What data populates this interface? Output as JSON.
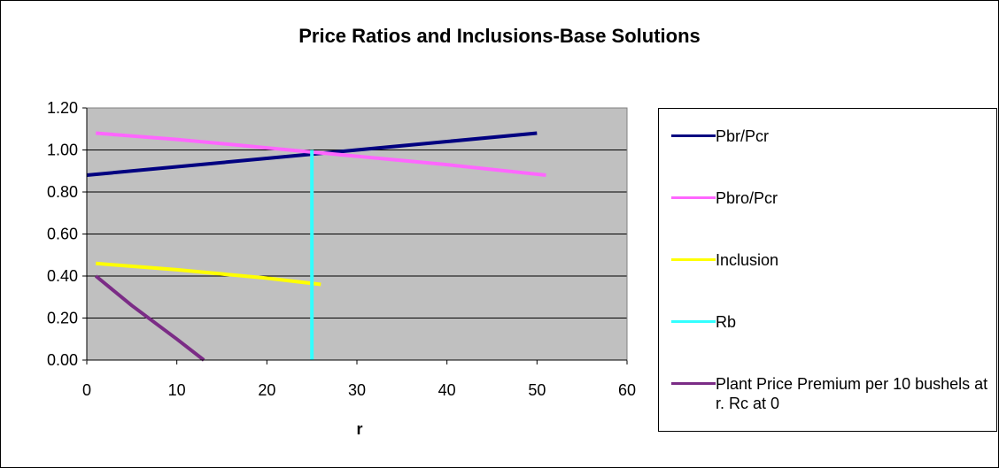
{
  "chart_data": {
    "type": "line",
    "title": "Price Ratios and Inclusions-Base Solutions",
    "xlabel": "r",
    "ylabel": "",
    "xlim": [
      0,
      60
    ],
    "ylim": [
      0,
      1.2
    ],
    "xticks": [
      "0",
      "10",
      "20",
      "30",
      "40",
      "50",
      "60"
    ],
    "yticks": [
      "0.00",
      "0.20",
      "0.40",
      "0.60",
      "0.80",
      "1.00",
      "1.20"
    ],
    "grid": "horizontal",
    "plot_background": "#C0C0C0",
    "legend_position": "right",
    "series": [
      {
        "name": "Pbr/Pcr",
        "color": "#000080",
        "x": [
          0,
          10,
          20,
          25,
          30,
          40,
          50
        ],
        "values": [
          0.88,
          0.92,
          0.96,
          0.98,
          1.0,
          1.04,
          1.08
        ]
      },
      {
        "name": "Pbro/Pcr",
        "color": "#FF66FF",
        "x": [
          1,
          10,
          20,
          25,
          30,
          40,
          51
        ],
        "values": [
          1.08,
          1.05,
          1.01,
          0.99,
          0.97,
          0.93,
          0.88
        ]
      },
      {
        "name": "Inclusion",
        "color": "#FFFF00",
        "x": [
          1,
          10,
          20,
          26
        ],
        "values": [
          0.46,
          0.43,
          0.39,
          0.36
        ]
      },
      {
        "name": "Rb",
        "color": "#33FFFF",
        "x": [
          25,
          25
        ],
        "values": [
          0,
          1.0
        ]
      },
      {
        "name": "Plant Price Premium per 10 bushels at r.  Rc at 0",
        "color": "#7B2C86",
        "x": [
          1,
          5,
          10,
          13
        ],
        "values": [
          0.4,
          0.26,
          0.1,
          0.0
        ]
      }
    ]
  }
}
